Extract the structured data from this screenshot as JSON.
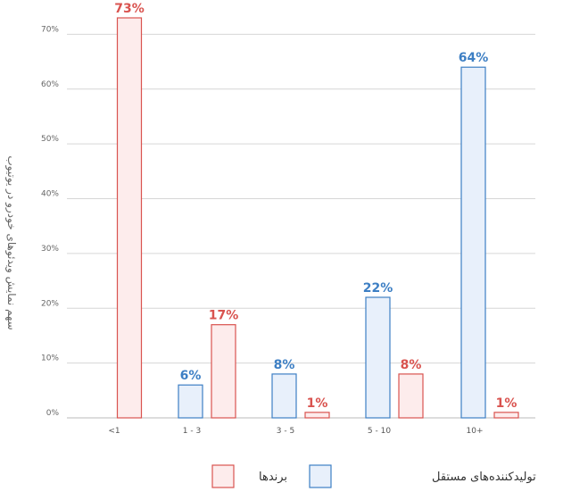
{
  "chart_data": {
    "type": "bar",
    "ylabel": "سهم نمایش ویدئوهای خودرو در یوتیوب",
    "categories": [
      "<1",
      "1 - 3",
      "3 - 5",
      "5 - 10",
      "10+"
    ],
    "y_ticks": [
      "0%",
      "10%",
      "20%",
      "30%",
      "40%",
      "50%",
      "60%",
      "70%"
    ],
    "ylim": [
      0,
      73
    ],
    "grid": true,
    "legend_position": "bottom",
    "series": [
      {
        "name": "تولیدکننده‌های مستقل",
        "values": [
          null,
          6,
          8,
          22,
          64
        ],
        "labels": [
          "",
          "6%",
          "8%",
          "22%",
          "64%"
        ],
        "fill": "#e8f0fb",
        "stroke": "#3d7fc4",
        "label_color": "#3d7fc4"
      },
      {
        "name": "برندها",
        "values": [
          73,
          17,
          1,
          8,
          1
        ],
        "labels": [
          "73%",
          "17%",
          "1%",
          "8%",
          "1%"
        ],
        "fill": "#fdecec",
        "stroke": "#d9534f",
        "label_color": "#d9534f"
      }
    ]
  }
}
